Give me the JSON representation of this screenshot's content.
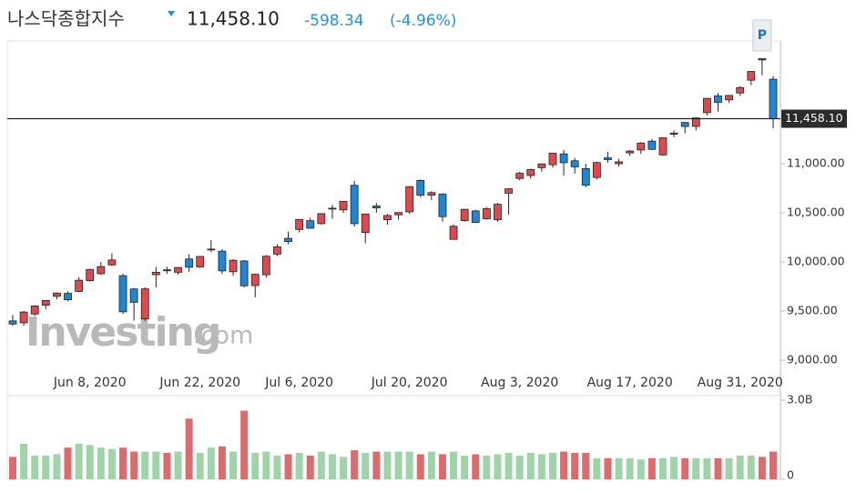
{
  "chart_data": {
    "type": "candlestick",
    "title": "나스닥종합지수",
    "price": "11,458.10",
    "change": "-598.34",
    "change_pct": "(-4.96%)",
    "last_price": {
      "value": 11458.1,
      "label": "11,458.10"
    },
    "marker_label": "P",
    "watermark": [
      "Investing",
      ".com"
    ],
    "up_color": "#e0484d",
    "down_color": "#1f86d6",
    "volume_up_color": "#9fd4a8",
    "volume_down_color": "#dd6b6b",
    "categories": [
      null,
      null,
      null,
      null,
      null,
      null,
      null,
      "Jun 8, 2020",
      null,
      null,
      null,
      null,
      null,
      null,
      null,
      null,
      null,
      "Jun 22, 2020",
      null,
      null,
      null,
      null,
      null,
      null,
      null,
      null,
      "Jul 6, 2020",
      null,
      null,
      null,
      null,
      null,
      null,
      null,
      null,
      null,
      "Jul 20, 2020",
      null,
      null,
      null,
      null,
      null,
      null,
      null,
      null,
      null,
      "Aug 3, 2020",
      null,
      null,
      null,
      null,
      null,
      null,
      null,
      null,
      null,
      "Aug 17, 2020",
      null,
      null,
      null,
      null,
      null,
      null,
      null,
      null,
      null,
      "Aug 31, 2020",
      null,
      null,
      null
    ],
    "open": [
      9400,
      9380,
      9470,
      9560,
      9650,
      9680,
      9700,
      9810,
      9880,
      9970,
      9860,
      9725,
      9420,
      9870,
      9920,
      9895,
      10030,
      9950,
      10130,
      10110,
      9900,
      10010,
      9760,
      9870,
      10080,
      10240,
      10330,
      10420,
      10390,
      10540,
      10530,
      10780,
      10300,
      10570,
      10430,
      10480,
      10510,
      10830,
      10680,
      10690,
      10230,
      10420,
      10520,
      10440,
      10430,
      10700,
      10850,
      10880,
      10960,
      10990,
      11100,
      11030,
      10950,
      10860,
      11060,
      11000,
      11110,
      11140,
      11230,
      11090,
      11300,
      11420,
      11380,
      11520,
      11690,
      11650,
      11720,
      11850,
      12070,
      11860
    ],
    "high": [
      9460,
      9500,
      9560,
      9610,
      9690,
      9700,
      9845,
      9930,
      10000,
      10086,
      9880,
      9735,
      9740,
      9950,
      9950,
      9950,
      10080,
      10060,
      10221,
      10130,
      10030,
      10020,
      9880,
      10070,
      10180,
      10310,
      10433,
      10450,
      10493,
      10580,
      10620,
      10824,
      10490,
      10600,
      10490,
      10500,
      10770,
      10840,
      10720,
      10700,
      10380,
      10540,
      10530,
      10560,
      10600,
      10750,
      10920,
      10950,
      11002,
      11110,
      11140,
      11060,
      11000,
      11020,
      11120,
      11050,
      11140,
      11220,
      11250,
      11270,
      11340,
      11420,
      11470,
      11670,
      11720,
      11700,
      11790,
      11945,
      12074,
      11894
    ],
    "low": [
      9350,
      9350,
      9450,
      9520,
      9620,
      9600,
      9690,
      9800,
      9870,
      9960,
      9470,
      9403,
      9400,
      9740,
      9880,
      9870,
      9900,
      9940,
      10100,
      9880,
      9860,
      9740,
      9640,
      9840,
      10060,
      10180,
      10300,
      10340,
      10380,
      10440,
      10500,
      10360,
      10190,
      10500,
      10380,
      10430,
      10490,
      10660,
      10630,
      10410,
      10230,
      10410,
      10400,
      10430,
      10410,
      10480,
      10830,
      10850,
      10920,
      10960,
      10880,
      10900,
      10760,
      10840,
      11010,
      10970,
      11080,
      11100,
      11140,
      11080,
      11270,
      11310,
      11340,
      11490,
      11530,
      11620,
      11690,
      11800,
      11900,
      11361
    ],
    "close": [
      9368,
      9490,
      9552,
      9608,
      9683,
      9615,
      9814,
      9924,
      9953,
      10020,
      9492,
      9589,
      9726,
      9895,
      9910,
      9943,
      9946,
      10056,
      10131,
      9909,
      10017,
      9757,
      9874,
      10058,
      10154,
      10207,
      10433,
      10343,
      10492,
      10547,
      10617,
      10390,
      10488,
      10550,
      10473,
      10503,
      10767,
      10680,
      10706,
      10461,
      10363,
      10536,
      10402,
      10542,
      10587,
      10745,
      10902,
      10941,
      10998,
      11108,
      11010,
      10968,
      10782,
      11012,
      11042,
      11019,
      11129,
      11210,
      11146,
      11264,
      11311,
      11379,
      11466,
      11665,
      11625,
      11695,
      11775,
      11939,
      12056,
      11458
    ],
    "volume": [
      0.85,
      1.35,
      0.9,
      0.9,
      0.95,
      1.2,
      1.35,
      1.3,
      1.2,
      1.15,
      1.2,
      1.05,
      1.05,
      1.05,
      1.0,
      1.05,
      2.3,
      1.0,
      1.2,
      1.25,
      1.05,
      2.6,
      1.0,
      1.05,
      0.9,
      0.95,
      1.0,
      0.9,
      1.05,
      0.95,
      0.85,
      1.1,
      1.0,
      1.05,
      1.05,
      1.05,
      1.05,
      0.95,
      1.05,
      0.95,
      1.05,
      0.9,
      0.95,
      0.9,
      0.95,
      1.0,
      0.9,
      1.0,
      0.95,
      1.0,
      1.05,
      1.0,
      1.0,
      0.8,
      0.8,
      0.8,
      0.8,
      0.75,
      0.8,
      0.8,
      0.85,
      0.8,
      0.8,
      0.8,
      0.8,
      0.8,
      0.9,
      0.9,
      0.85,
      1.05
    ],
    "ylim": [
      8917,
      12250
    ],
    "yticks": [
      {
        "value": 9000,
        "label": "9,000.00"
      },
      {
        "value": 9500,
        "label": "9,500.00"
      },
      {
        "value": 10000,
        "label": "10,000.00"
      },
      {
        "value": 10500,
        "label": "10,500.00"
      },
      {
        "value": 11000,
        "label": "11,000.00"
      }
    ],
    "volume_ylim": [
      0,
      3.0
    ],
    "volume_yticks": [
      0,
      {
        "value": 3.0,
        "label": "3.0B"
      }
    ]
  }
}
